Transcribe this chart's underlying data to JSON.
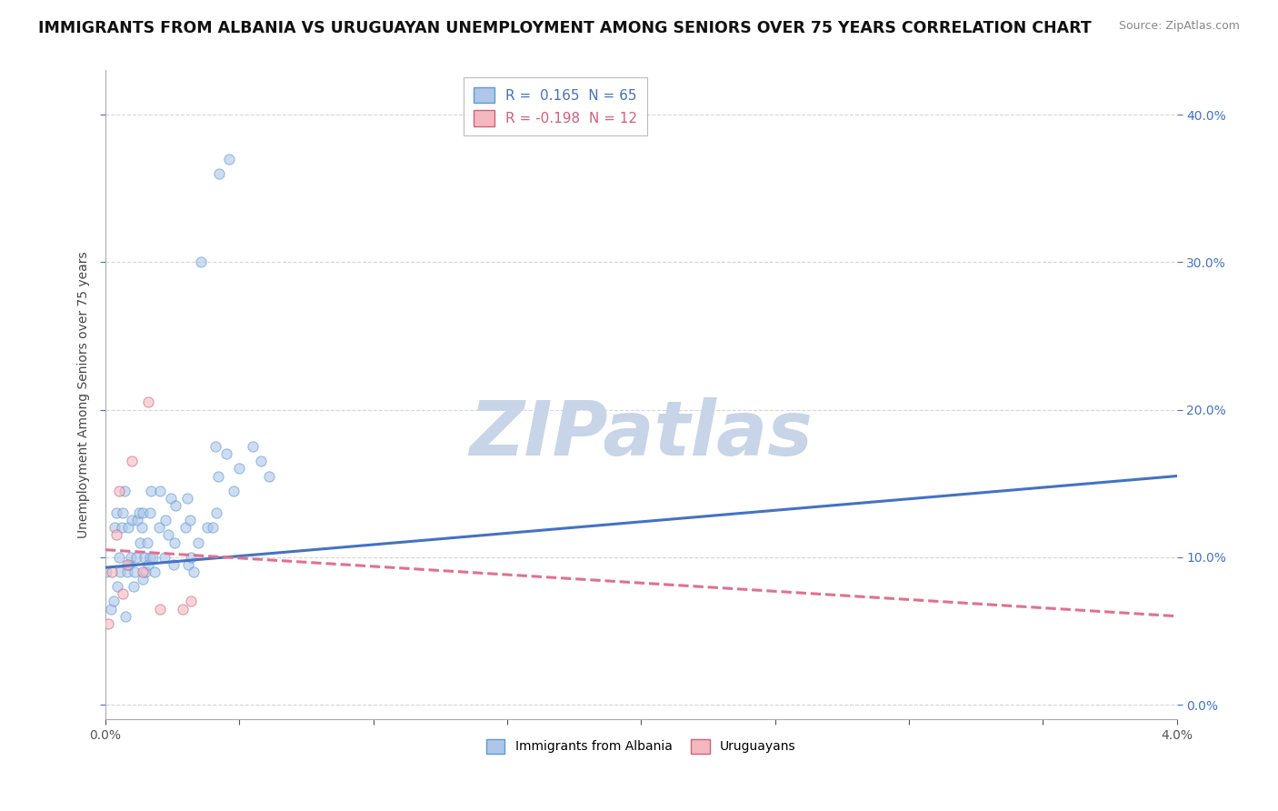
{
  "title": "IMMIGRANTS FROM ALBANIA VS URUGUAYAN UNEMPLOYMENT AMONG SENIORS OVER 75 YEARS CORRELATION CHART",
  "source": "Source: ZipAtlas.com",
  "ylabel": "Unemployment Among Seniors over 75 years",
  "ytick_vals": [
    0.0,
    0.1,
    0.2,
    0.3,
    0.4
  ],
  "xlim": [
    0.0,
    0.04
  ],
  "ylim": [
    -0.01,
    0.43
  ],
  "watermark": "ZIPatlas",
  "albania_scatter_x": [
    2e-05,
    0.0002,
    0.0003,
    0.00035,
    0.0004,
    0.00045,
    0.0005,
    0.00055,
    0.0006,
    0.00065,
    0.0007,
    0.00075,
    0.0008,
    0.00085,
    0.0009,
    0.00095,
    0.001,
    0.00105,
    0.0011,
    0.00115,
    0.0012,
    0.00125,
    0.0013,
    0.00135,
    0.00138,
    0.0014,
    0.00145,
    0.0015,
    0.00155,
    0.0016,
    0.00165,
    0.00168,
    0.0017,
    0.00175,
    0.00185,
    0.002,
    0.00205,
    0.0022,
    0.00225,
    0.00235,
    0.00245,
    0.00255,
    0.00258,
    0.0026,
    0.003,
    0.00305,
    0.0031,
    0.00315,
    0.0032,
    0.0033,
    0.00345,
    0.00355,
    0.0038,
    0.004,
    0.0041,
    0.00415,
    0.0042,
    0.00425,
    0.0045,
    0.0046,
    0.0048,
    0.005,
    0.0055,
    0.0058,
    0.0061
  ],
  "albania_scatter_y": [
    0.09,
    0.065,
    0.07,
    0.12,
    0.13,
    0.08,
    0.1,
    0.09,
    0.12,
    0.13,
    0.145,
    0.06,
    0.09,
    0.12,
    0.095,
    0.1,
    0.125,
    0.08,
    0.09,
    0.1,
    0.125,
    0.13,
    0.11,
    0.12,
    0.13,
    0.085,
    0.1,
    0.09,
    0.11,
    0.095,
    0.1,
    0.13,
    0.145,
    0.1,
    0.09,
    0.12,
    0.145,
    0.1,
    0.125,
    0.115,
    0.14,
    0.095,
    0.11,
    0.135,
    0.12,
    0.14,
    0.095,
    0.125,
    0.1,
    0.09,
    0.11,
    0.3,
    0.12,
    0.12,
    0.175,
    0.13,
    0.155,
    0.36,
    0.17,
    0.37,
    0.145,
    0.16,
    0.175,
    0.165,
    0.155
  ],
  "uruguay_scatter_x": [
    0.0001,
    0.00025,
    0.0004,
    0.0005,
    0.00065,
    0.0008,
    0.001,
    0.0014,
    0.0016,
    0.00205,
    0.0029,
    0.0032
  ],
  "uruguay_scatter_y": [
    0.055,
    0.09,
    0.115,
    0.145,
    0.075,
    0.095,
    0.165,
    0.09,
    0.205,
    0.065,
    0.065,
    0.07
  ],
  "albania_line_x": [
    0.0,
    0.04
  ],
  "albania_line_y": [
    0.093,
    0.155
  ],
  "uruguay_line_x": [
    0.0,
    0.04
  ],
  "uruguay_line_y": [
    0.105,
    0.06
  ],
  "scatter_alpha": 0.6,
  "albania_color": "#aec6e8",
  "albania_edge_color": "#5b9bd5",
  "uruguay_color": "#f4b8c1",
  "uruguay_edge_color": "#d4607a",
  "albania_line_color": "#4472c4",
  "uruguay_line_color": "#e07090",
  "bg_color": "#ffffff",
  "grid_color": "#cccccc",
  "title_fontsize": 12.5,
  "axis_fontsize": 10,
  "watermark_color": "#c8d4e8",
  "watermark_fontsize": 60,
  "legend_r1": "R =  0.165  N = 65",
  "legend_r2": "R = -0.198  N = 12",
  "legend_label1": "Immigrants from Albania",
  "legend_label2": "Uruguayans"
}
